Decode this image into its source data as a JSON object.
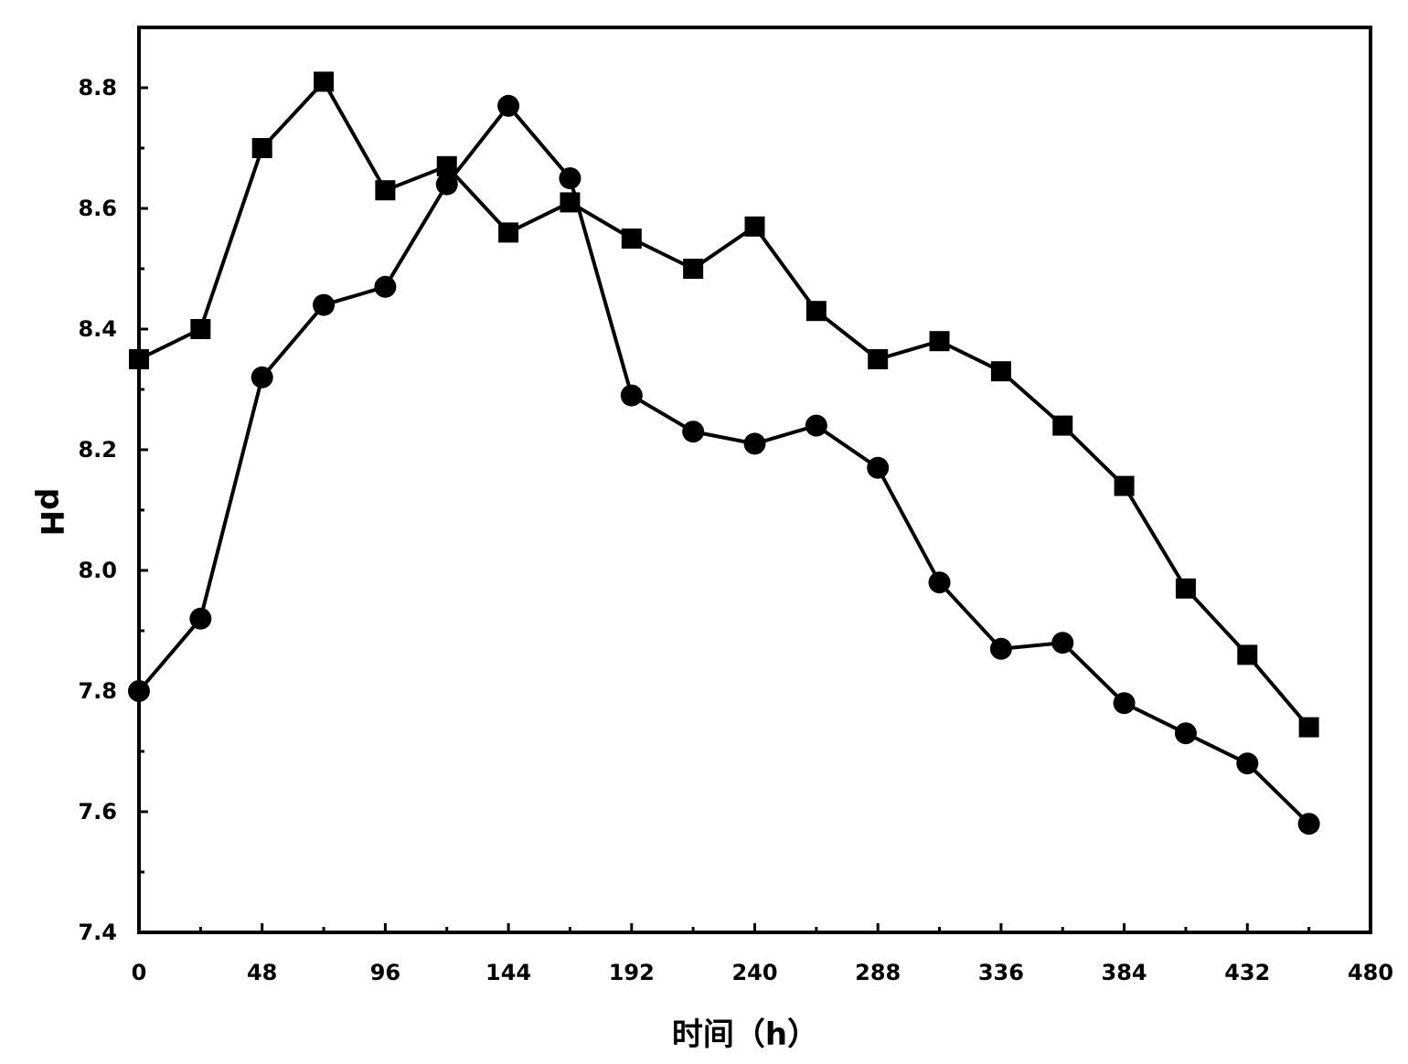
{
  "chart_data": {
    "type": "line",
    "title": "",
    "xlabel": "时间（h）",
    "ylabel": "pH",
    "xlim": [
      0,
      480
    ],
    "ylim": [
      7.4,
      8.9
    ],
    "x_ticks": [
      0,
      48,
      96,
      144,
      192,
      240,
      288,
      336,
      384,
      432,
      480
    ],
    "x_tick_labels": [
      "0",
      "48",
      "96",
      "144",
      "192",
      "240",
      "288",
      "336",
      "384",
      "432",
      "480"
    ],
    "x_minor_ticks": [
      24,
      72,
      120,
      168,
      216,
      264,
      312,
      360,
      408,
      456
    ],
    "y_ticks": [
      7.4,
      7.6,
      7.8,
      8.0,
      8.2,
      8.4,
      8.6,
      8.8
    ],
    "y_tick_labels": [
      "7.4",
      "7.6",
      "7.8",
      "8.0",
      "8.2",
      "8.4",
      "8.6",
      "8.8"
    ],
    "y_minor_ticks": [
      7.5,
      7.7,
      7.9,
      8.1,
      8.3,
      8.5,
      8.7
    ],
    "grid": false,
    "x": [
      0,
      24,
      48,
      72,
      96,
      120,
      144,
      168,
      192,
      216,
      240,
      264,
      288,
      312,
      336,
      360,
      384,
      408,
      432,
      456
    ],
    "series": [
      {
        "marker": "square",
        "values": [
          8.35,
          8.4,
          8.7,
          8.81,
          8.63,
          8.67,
          8.56,
          8.61,
          8.55,
          8.5,
          8.57,
          8.43,
          8.35,
          8.38,
          8.33,
          8.24,
          8.14,
          7.97,
          7.86,
          7.74
        ]
      },
      {
        "marker": "circle",
        "values": [
          7.8,
          7.92,
          8.32,
          8.44,
          8.47,
          8.64,
          8.77,
          8.65,
          8.29,
          8.23,
          8.21,
          8.24,
          8.17,
          7.98,
          7.87,
          7.88,
          7.78,
          7.73,
          7.68,
          7.58
        ]
      }
    ]
  }
}
